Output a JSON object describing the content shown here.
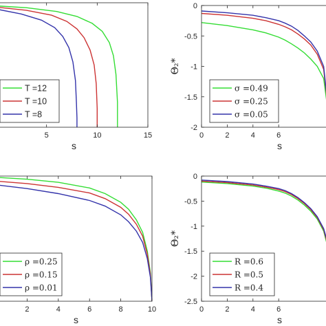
{
  "colors": {
    "green": "#33dd33",
    "red": "#cc3333",
    "blue": "#3333aa",
    "axis": "#262626"
  },
  "chart_data": [
    {
      "type": "line",
      "xlabel": "s",
      "ylabel": "",
      "xticks": [
        "5",
        "10",
        "15"
      ],
      "xtick_values": [
        5,
        10,
        15
      ],
      "xlim": [
        0,
        15
      ],
      "ylim": [
        -2,
        0
      ],
      "grid": false,
      "legend": "bottom-left",
      "series": [
        {
          "name": "T =12",
          "color": "green",
          "x": [
            0,
            3,
            6,
            8,
            9.5,
            10.5,
            11.2,
            11.6,
            11.85,
            12,
            12
          ],
          "y": [
            -0.05,
            -0.08,
            -0.14,
            -0.22,
            -0.33,
            -0.46,
            -0.64,
            -0.85,
            -1.15,
            -1.6,
            -2
          ]
        },
        {
          "name": "T =10",
          "color": "red",
          "x": [
            0,
            3,
            5.5,
            7,
            8,
            8.7,
            9.3,
            9.7,
            9.9,
            10,
            10
          ],
          "y": [
            -0.07,
            -0.12,
            -0.2,
            -0.3,
            -0.42,
            -0.56,
            -0.76,
            -1.0,
            -1.3,
            -1.7,
            -2
          ]
        },
        {
          "name": "T =8",
          "color": "blue",
          "x": [
            0,
            2.5,
            4.5,
            5.8,
            6.6,
            7.2,
            7.6,
            7.85,
            7.95,
            8,
            8
          ],
          "y": [
            -0.1,
            -0.18,
            -0.28,
            -0.4,
            -0.54,
            -0.72,
            -0.95,
            -1.25,
            -1.6,
            -1.85,
            -2
          ]
        }
      ]
    },
    {
      "type": "line",
      "xlabel": "s",
      "ylabel": "Θ₂*",
      "xticks": [
        "0",
        "2",
        "4",
        "6"
      ],
      "xtick_values": [
        0,
        2,
        4,
        6
      ],
      "yticks": [
        "0",
        "-0.5",
        "-1",
        "-1.5",
        "-2"
      ],
      "ytick_values": [
        0,
        -0.5,
        -1,
        -1.5,
        -2
      ],
      "xlim": [
        0,
        10
      ],
      "ylim": [
        -2,
        0
      ],
      "grid": false,
      "legend": "bottom-left",
      "series": [
        {
          "name": "σ =0.49",
          "color": "green",
          "x": [
            0,
            2,
            4,
            5,
            6,
            6.5,
            7,
            7.5,
            8,
            8.5,
            9,
            9.5,
            10
          ],
          "y": [
            -0.28,
            -0.33,
            -0.4,
            -0.45,
            -0.52,
            -0.57,
            -0.63,
            -0.7,
            -0.78,
            -0.88,
            -1.0,
            -1.2,
            -2
          ]
        },
        {
          "name": "σ =0.25",
          "color": "red",
          "x": [
            0,
            2,
            4,
            5,
            6,
            6.5,
            7,
            7.5,
            8,
            8.5,
            9,
            9.5,
            10
          ],
          "y": [
            -0.13,
            -0.16,
            -0.21,
            -0.25,
            -0.31,
            -0.35,
            -0.4,
            -0.47,
            -0.55,
            -0.65,
            -0.8,
            -1.05,
            -2
          ]
        },
        {
          "name": "σ =0.05",
          "color": "blue",
          "x": [
            0,
            2,
            4,
            5,
            6,
            6.5,
            7,
            7.5,
            8,
            8.5,
            9,
            9.5,
            10
          ],
          "y": [
            -0.09,
            -0.12,
            -0.16,
            -0.2,
            -0.25,
            -0.29,
            -0.34,
            -0.41,
            -0.5,
            -0.6,
            -0.75,
            -1.0,
            -2
          ]
        }
      ]
    },
    {
      "type": "line",
      "xlabel": "s",
      "ylabel": "",
      "xticks": [
        "2",
        "4",
        "6",
        "8",
        "10"
      ],
      "xtick_values": [
        2,
        4,
        6,
        8,
        10
      ],
      "xlim": [
        0,
        10
      ],
      "ylim": [
        -2,
        0
      ],
      "grid": false,
      "legend": "bottom-left",
      "series": [
        {
          "name": "ρ =0.25",
          "color": "green",
          "x": [
            0,
            2,
            4,
            6,
            7,
            8,
            8.5,
            9,
            9.4,
            9.7,
            9.9,
            10
          ],
          "y": [
            -0.02,
            -0.05,
            -0.1,
            -0.19,
            -0.28,
            -0.42,
            -0.53,
            -0.7,
            -0.9,
            -1.2,
            -1.55,
            -2
          ]
        },
        {
          "name": "ρ =0.15",
          "color": "red",
          "x": [
            0,
            2,
            4,
            6,
            7,
            8,
            8.5,
            9,
            9.4,
            9.7,
            9.9,
            10
          ],
          "y": [
            -0.08,
            -0.12,
            -0.18,
            -0.27,
            -0.36,
            -0.5,
            -0.61,
            -0.77,
            -0.96,
            -1.25,
            -1.58,
            -2
          ]
        },
        {
          "name": "ρ =0.01",
          "color": "blue",
          "x": [
            0,
            2,
            4,
            6,
            7,
            8,
            8.5,
            9,
            9.4,
            9.7,
            9.9,
            10
          ],
          "y": [
            -0.14,
            -0.2,
            -0.28,
            -0.39,
            -0.48,
            -0.62,
            -0.73,
            -0.88,
            -1.06,
            -1.32,
            -1.62,
            -2
          ]
        }
      ]
    },
    {
      "type": "line",
      "xlabel": "s",
      "ylabel": "Θ₂*",
      "xticks": [
        "0",
        "2",
        "4",
        "6"
      ],
      "xtick_values": [
        0,
        2,
        4,
        6
      ],
      "yticks": [
        "0",
        "-0.5",
        "-1",
        "-1.5",
        "-2",
        "-2.5"
      ],
      "ytick_values": [
        0,
        -0.5,
        -1,
        -1.5,
        -2,
        -2.5
      ],
      "xlim": [
        0,
        10
      ],
      "ylim": [
        -2.5,
        0
      ],
      "grid": false,
      "legend": "bottom-left",
      "series": [
        {
          "name": "R =0.6",
          "color": "green",
          "x": [
            0,
            2,
            4,
            5,
            6,
            6.5,
            7,
            7.5,
            8,
            8.5,
            9,
            9.5,
            10
          ],
          "y": [
            -0.12,
            -0.15,
            -0.2,
            -0.24,
            -0.3,
            -0.34,
            -0.4,
            -0.48,
            -0.58,
            -0.7,
            -0.86,
            -1.1,
            -1.6
          ]
        },
        {
          "name": "R =0.5",
          "color": "red",
          "x": [
            0,
            2,
            4,
            5,
            6,
            6.5,
            7,
            7.5,
            8,
            8.5,
            9,
            9.5,
            10
          ],
          "y": [
            -0.1,
            -0.13,
            -0.18,
            -0.22,
            -0.27,
            -0.31,
            -0.37,
            -0.45,
            -0.55,
            -0.67,
            -0.83,
            -1.07,
            -1.55
          ]
        },
        {
          "name": "R =0.4",
          "color": "blue",
          "x": [
            0,
            2,
            4,
            5,
            6,
            6.5,
            7,
            7.5,
            8,
            8.5,
            9,
            9.5,
            10
          ],
          "y": [
            -0.08,
            -0.11,
            -0.16,
            -0.2,
            -0.25,
            -0.29,
            -0.35,
            -0.43,
            -0.53,
            -0.65,
            -0.81,
            -1.05,
            -1.5
          ]
        }
      ]
    }
  ]
}
